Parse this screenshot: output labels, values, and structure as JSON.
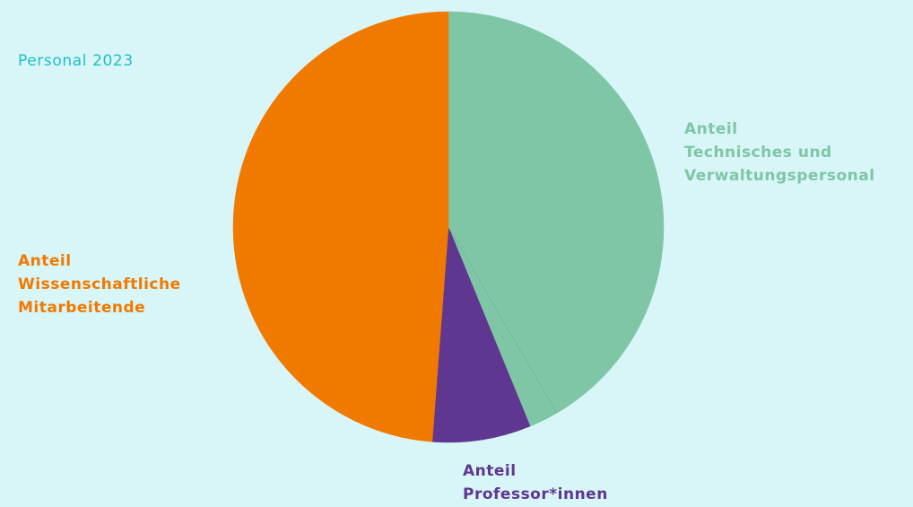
{
  "title": "Personal 2023",
  "chart_data": {
    "type": "pie",
    "slices": [
      {
        "label_lines": [
          "Anteil",
          "Technisches und",
          "Verwaltungspersonal"
        ],
        "value": 41.6,
        "color": "#7ec6a5"
      },
      {
        "label_lines": [],
        "value": 2.2,
        "color": "#7ec6a5"
      },
      {
        "label_lines": [
          "Anteil",
          "Professor*innen"
        ],
        "value": 7.4,
        "color": "#5f3790"
      },
      {
        "label_lines": [
          "Anteil",
          "Wissenschaftliche",
          "Mitarbeitende"
        ],
        "value": 48.8,
        "color": "#f07a00"
      }
    ]
  }
}
